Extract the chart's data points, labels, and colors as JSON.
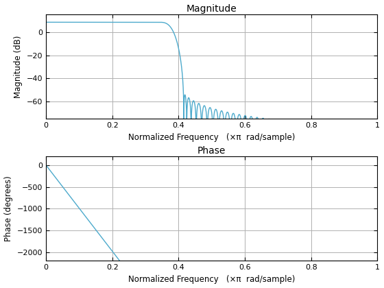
{
  "line_color": "#4DAACC",
  "line_width": 1.0,
  "mag_title": "Magnitude",
  "mag_xlabel": "Normalized Frequency   (×π  rad/sample)",
  "mag_ylabel": "Magnitude (dB)",
  "mag_ylim": [
    -75,
    15
  ],
  "mag_yticks": [
    -60,
    -40,
    -20,
    0
  ],
  "phase_title": "Phase",
  "phase_xlabel": "Normalized Frequency   (×π  rad/sample)",
  "phase_ylabel": "Phase (degrees)",
  "phase_ylim": [
    -2200,
    200
  ],
  "phase_yticks": [
    -2000,
    -1500,
    -1000,
    -500,
    0
  ],
  "xlim": [
    0,
    1
  ],
  "xticks": [
    0,
    0.2,
    0.4,
    0.6,
    0.8,
    1
  ],
  "background_color": "#ffffff",
  "grid_color": "#b0b0b0",
  "cutoff": 0.38,
  "filter_order": 110,
  "gain_db": 8.5
}
